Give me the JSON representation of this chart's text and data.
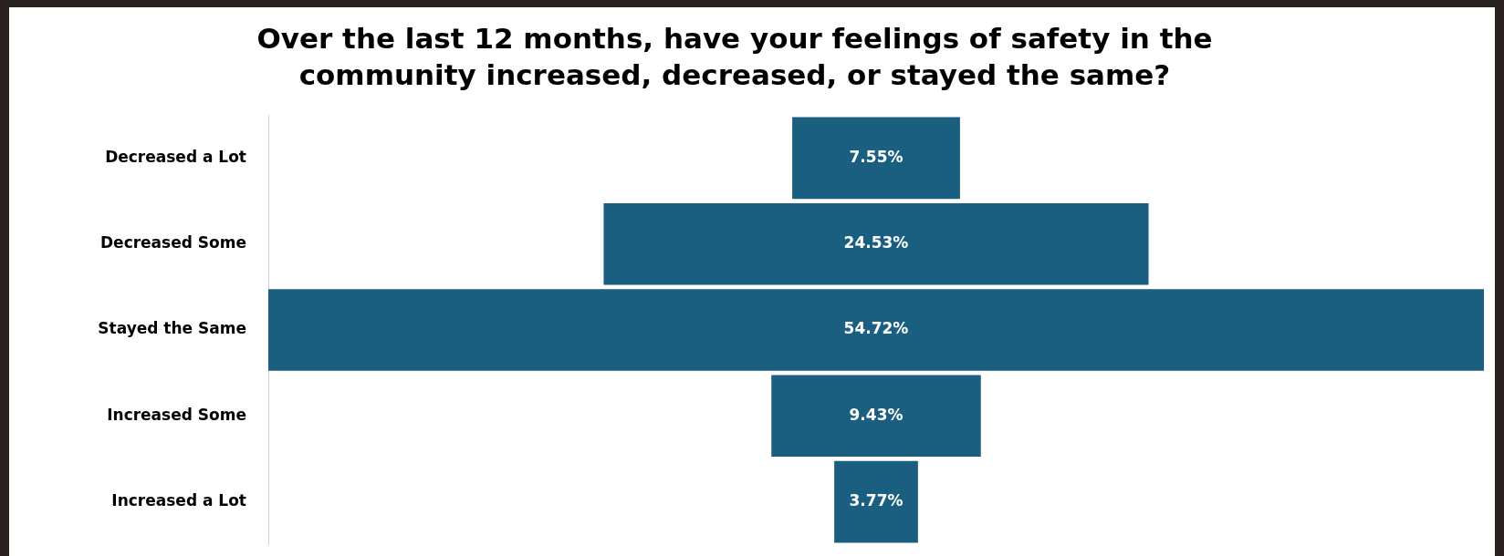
{
  "chart_data": {
    "type": "other",
    "title": "Over the last 12 months, have your feelings of safety in the community increased, decreased, or stayed the same?",
    "categories": [
      "Decreased a Lot",
      "Decreased Some",
      "Stayed the Same",
      "Increased Some",
      "Increased a Lot"
    ],
    "values": [
      7.55,
      24.53,
      54.72,
      9.43,
      3.77
    ],
    "value_labels": [
      "7.55%",
      "24.53%",
      "54.72%",
      "9.43%",
      "3.77%"
    ],
    "color": "#1a5f80"
  }
}
